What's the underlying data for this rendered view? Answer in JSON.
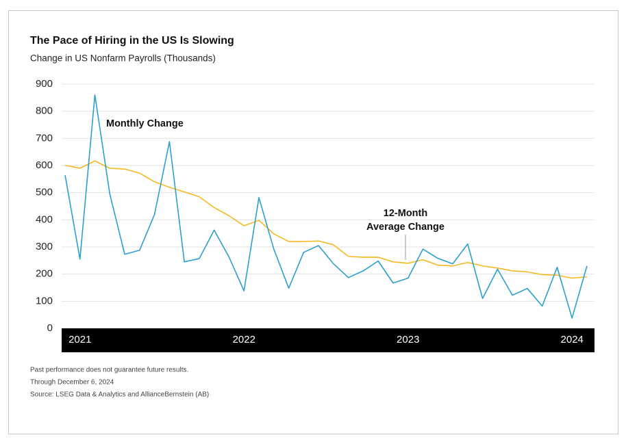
{
  "chart_data": {
    "type": "line",
    "title": "The Pace of Hiring in the US Is Slowing",
    "subtitle": "Change in US Nonfarm Payrolls (Thousands)",
    "categories": [
      null,
      "2021",
      null,
      null,
      null,
      null,
      null,
      null,
      null,
      null,
      null,
      null,
      "2022",
      null,
      null,
      null,
      null,
      null,
      null,
      null,
      null,
      null,
      null,
      "2023",
      null,
      null,
      null,
      null,
      null,
      null,
      null,
      null,
      null,
      null,
      "2024",
      null
    ],
    "series": [
      {
        "color": "#2a9fd0",
        "values": [
          565,
          255,
          860,
          495,
          273,
          288,
          420,
          688,
          245,
          257,
          362,
          262,
          138,
          482,
          292,
          148,
          280,
          305,
          238,
          187,
          212,
          248,
          167,
          185,
          292,
          258,
          238,
          311,
          110,
          218,
          122,
          147,
          82,
          225,
          38,
          230
        ]
      },
      {
        "color": "#f5b820",
        "values": [
          601,
          590,
          617,
          590,
          587,
          572,
          540,
          520,
          503,
          485,
          445,
          415,
          378,
          398,
          348,
          320,
          320,
          322,
          308,
          265,
          262,
          262,
          245,
          240,
          253,
          233,
          230,
          243,
          230,
          222,
          212,
          208,
          198,
          196,
          185,
          190
        ]
      }
    ],
    "annotations": [
      {
        "text": [
          "Monthly Change"
        ]
      },
      {
        "text": [
          "12-Month",
          "Average Change"
        ]
      }
    ],
    "ylim": [
      0,
      900
    ],
    "yticks": [
      0,
      100,
      200,
      300,
      400,
      500,
      600,
      700,
      800,
      900
    ],
    "grid": true,
    "footnotes": [
      "Past performance does not guarantee future results.",
      "Through December 6, 2024",
      "Source: LSEG Data & Analytics and AllianceBernstein (AB)"
    ]
  }
}
